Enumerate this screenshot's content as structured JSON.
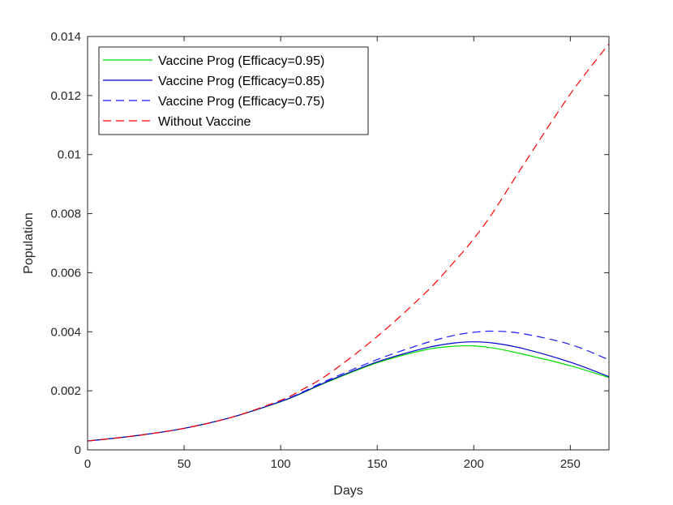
{
  "chart_data": {
    "type": "line",
    "xlabel": "Days",
    "ylabel": "Population",
    "xlim": [
      0,
      270
    ],
    "ylim": [
      0,
      0.014
    ],
    "xticks": [
      0,
      50,
      100,
      150,
      200,
      250
    ],
    "yticks": [
      0,
      0.002,
      0.004,
      0.006,
      0.008,
      0.01,
      0.012,
      0.014
    ],
    "xtick_labels": [
      "0",
      "50",
      "100",
      "150",
      "200",
      "250"
    ],
    "ytick_labels": [
      "0",
      "0.002",
      "0.004",
      "0.006",
      "0.008",
      "0.01",
      "0.012",
      "0.014"
    ],
    "grid": false,
    "legend_position": "top-left",
    "x": [
      0,
      25,
      50,
      75,
      100,
      110,
      125,
      150,
      175,
      190,
      200,
      210,
      225,
      250,
      270
    ],
    "series": [
      {
        "name": "Vaccine Prog (Efficacy=0.95)",
        "color": "#00dd00",
        "dash": "solid",
        "values": [
          0.0003,
          0.00048,
          0.00073,
          0.00111,
          0.00163,
          0.00189,
          0.00232,
          0.00295,
          0.00339,
          0.00351,
          0.00352,
          0.00345,
          0.00325,
          0.00285,
          0.00245
        ]
      },
      {
        "name": "Vaccine Prog (Efficacy=0.85)",
        "color": "#0000cc",
        "dash": "solid",
        "values": [
          0.0003,
          0.00048,
          0.00073,
          0.00111,
          0.00164,
          0.0019,
          0.00234,
          0.00298,
          0.00345,
          0.00362,
          0.00366,
          0.00362,
          0.00344,
          0.00297,
          0.00248
        ]
      },
      {
        "name": "Vaccine Prog (Efficacy=0.75)",
        "color": "#1a1aff",
        "dash": "dashed",
        "values": [
          0.0003,
          0.00048,
          0.00073,
          0.00111,
          0.00165,
          0.00192,
          0.00238,
          0.00306,
          0.00362,
          0.00388,
          0.00398,
          0.00402,
          0.00394,
          0.00357,
          0.00305
        ]
      },
      {
        "name": "Without Vaccine",
        "color": "#ff0000",
        "dash": "dashed",
        "values": [
          0.0003,
          0.00048,
          0.00073,
          0.00111,
          0.00168,
          0.002,
          0.00258,
          0.00384,
          0.00532,
          0.00638,
          0.00715,
          0.00805,
          0.00958,
          0.01205,
          0.01375
        ]
      }
    ]
  }
}
